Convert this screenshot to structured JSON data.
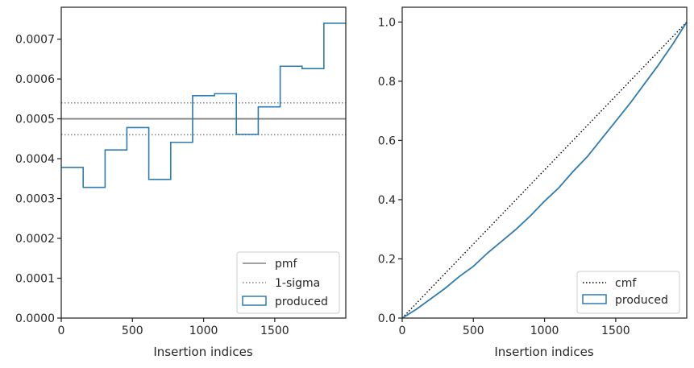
{
  "chart_data": [
    {
      "type": "line",
      "xlabel": "Insertion indices",
      "ylabel": "",
      "xlim": [
        0,
        1999
      ],
      "ylim": [
        0,
        0.00078
      ],
      "xticks": [
        0,
        500,
        1000,
        1500
      ],
      "xtick_labels": [
        "0",
        "500",
        "1000",
        "1500"
      ],
      "yticks": [
        0,
        0.0001,
        0.0002,
        0.0003,
        0.0004,
        0.0005,
        0.0006,
        0.0007
      ],
      "ytick_labels": [
        "0.0000",
        "0.0001",
        "0.0002",
        "0.0003",
        "0.0004",
        "0.0005",
        "0.0006",
        "0.0007"
      ],
      "legend_position": "lower-right",
      "series": [
        {
          "name": "pmf",
          "style": "solid",
          "color": "#808080",
          "x": [
            0,
            1999
          ],
          "values": [
            0.0005,
            0.0005
          ]
        },
        {
          "name": "1-sigma",
          "style": "dotted",
          "color": "#808080",
          "bands": [
            0.00054,
            0.00046
          ]
        },
        {
          "name": "produced",
          "style": "step-histogram",
          "color": "#2e7bb0",
          "bin_edges": [
            0,
            154,
            308,
            461,
            615,
            769,
            923,
            1077,
            1230,
            1384,
            1538,
            1692,
            1845,
            1999
          ],
          "values": [
            0.000378,
            0.000328,
            0.000422,
            0.000478,
            0.000348,
            0.000441,
            0.000558,
            0.000563,
            0.000461,
            0.00053,
            0.000632,
            0.000626,
            0.00074
          ]
        }
      ]
    },
    {
      "type": "line",
      "xlabel": "Insertion indices",
      "ylabel": "",
      "xlim": [
        0,
        1999
      ],
      "ylim": [
        0,
        1.05
      ],
      "xticks": [
        0,
        500,
        1000,
        1500
      ],
      "xtick_labels": [
        "0",
        "500",
        "1000",
        "1500"
      ],
      "yticks": [
        0,
        0.2,
        0.4,
        0.6,
        0.8,
        1.0
      ],
      "ytick_labels": [
        "0.0",
        "0.2",
        "0.4",
        "0.6",
        "0.8",
        "1.0"
      ],
      "legend_position": "lower-right",
      "series": [
        {
          "name": "cmf",
          "style": "dotted",
          "color": "#000000",
          "x": [
            0,
            1999
          ],
          "values": [
            0,
            1.0
          ]
        },
        {
          "name": "produced",
          "style": "solid",
          "color": "#2e7bb0",
          "x": [
            0,
            100,
            200,
            300,
            400,
            500,
            600,
            700,
            800,
            900,
            1000,
            1100,
            1200,
            1300,
            1400,
            1500,
            1600,
            1700,
            1800,
            1900,
            1999
          ],
          "values": [
            0,
            0.03,
            0.065,
            0.1,
            0.14,
            0.175,
            0.22,
            0.26,
            0.3,
            0.345,
            0.395,
            0.44,
            0.495,
            0.545,
            0.605,
            0.665,
            0.725,
            0.79,
            0.855,
            0.925,
            1.0
          ]
        }
      ]
    }
  ]
}
